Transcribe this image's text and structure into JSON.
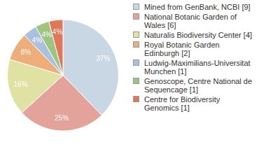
{
  "chart_data": {
    "type": "pie",
    "categories": [
      "Mined from GenBank, NCBI [9]",
      "National Botanic Garden of Wales [6]",
      "Naturalis Biodiversity Center [4]",
      "Royal Botanic Garden Edinburgh [2]",
      "Ludwig-Maximilians-Universitat Munchen [1]",
      "Genoscope, Centre National de Sequencage [1]",
      "Centre for Biodiversity Genomics [1]"
    ],
    "values": [
      37,
      25,
      16,
      8,
      4,
      4,
      4
    ],
    "value_labels": [
      "37%",
      "25%",
      "16%",
      "8%",
      "4%",
      "4%",
      "4%"
    ],
    "colors": [
      "#c9d6e3",
      "#e3a39b",
      "#dfe2a2",
      "#eeae79",
      "#a9c0de",
      "#9fc47f",
      "#e07759"
    ],
    "data_labels": true,
    "legend": "right"
  }
}
